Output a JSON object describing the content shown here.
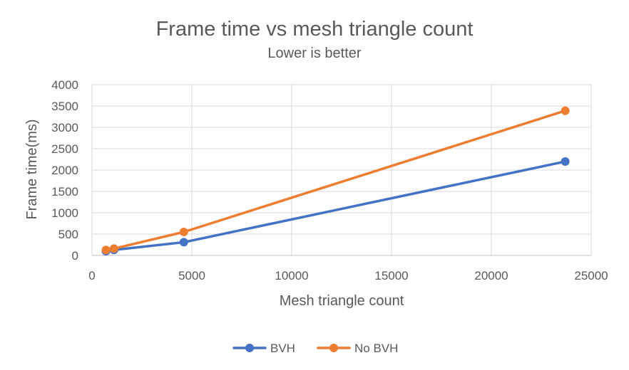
{
  "chart_data": {
    "type": "scatter",
    "title": "Frame time vs mesh triangle count",
    "subtitle": "Lower is better",
    "xlabel": "Mesh triangle count",
    "ylabel": "Frame time(ms)",
    "xlim": [
      0,
      25000
    ],
    "ylim": [
      0,
      4000
    ],
    "xticks": [
      0,
      5000,
      10000,
      15000,
      20000,
      25000
    ],
    "yticks": [
      0,
      500,
      1000,
      1500,
      2000,
      2500,
      3000,
      3500,
      4000
    ],
    "grid": true,
    "legend_position": "bottom",
    "series": [
      {
        "name": "BVH",
        "color": "#4472C4",
        "x": [
          700,
          1100,
          4600,
          23700
        ],
        "y": [
          100,
          130,
          310,
          2200
        ]
      },
      {
        "name": "No BVH",
        "color": "#ED7D31",
        "x": [
          700,
          1100,
          4600,
          23700
        ],
        "y": [
          130,
          160,
          550,
          3390
        ]
      }
    ]
  }
}
